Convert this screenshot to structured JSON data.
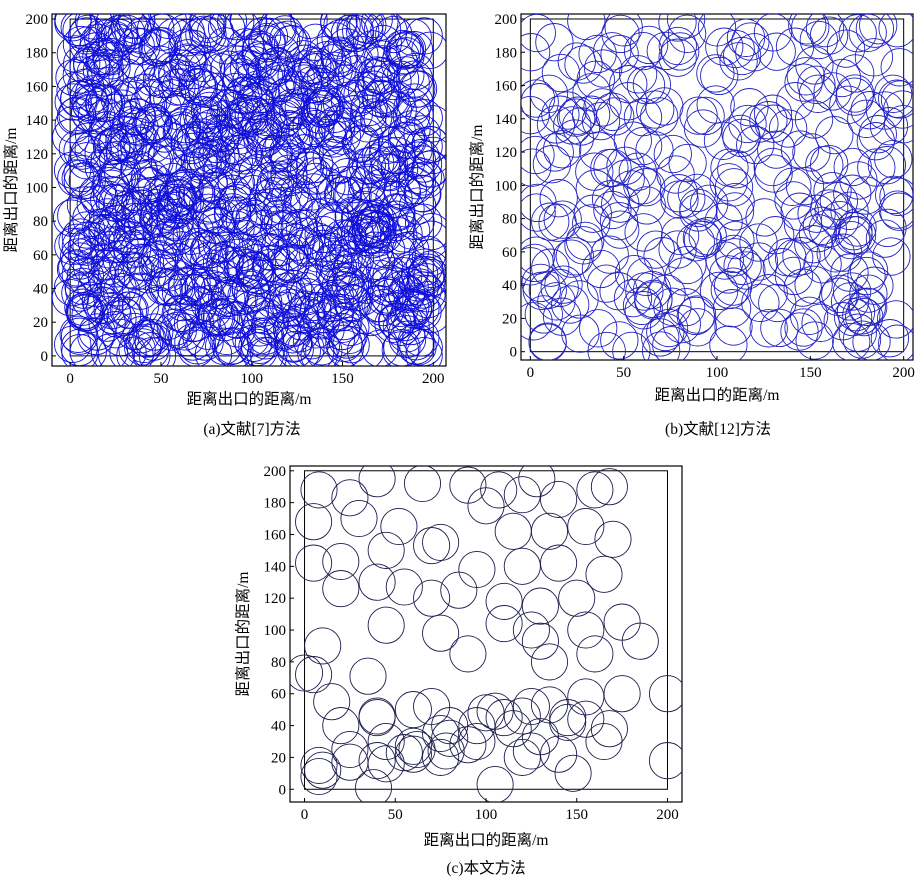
{
  "chart_data": [
    {
      "type": "scatter",
      "caption": "(a)文献[7]方法",
      "xlabel": "距离出口的距离/m",
      "ylabel": "距离出口的距离/m",
      "xlim": [
        -10,
        207
      ],
      "ylim": [
        -6,
        203
      ],
      "xticks": [
        0,
        50,
        100,
        150,
        200
      ],
      "yticks": [
        0,
        20,
        40,
        60,
        80,
        100,
        120,
        140,
        160,
        180,
        200
      ],
      "region": [
        0,
        200
      ],
      "circle_radius": 10,
      "circle_color": "#1010d8",
      "point_count": 1100,
      "seed": 7,
      "series": [
        {
          "x": [
            5,
            40,
            80,
            120,
            160,
            195,
            20,
            60,
            100,
            140,
            180,
            5,
            195,
            50,
            150,
            100
          ],
          "y": [
            195,
            190,
            192,
            188,
            193,
            190,
            150,
            145,
            155,
            148,
            152,
            5,
            5,
            60,
            70,
            100
          ]
        }
      ]
    },
    {
      "type": "scatter",
      "caption": "(b)文献[12]方法",
      "xlabel": "距离出口的距离/m",
      "ylabel": "距离出口的距离/m",
      "xlim": [
        -5,
        205
      ],
      "ylim": [
        -5,
        203
      ],
      "xticks": [
        0,
        50,
        100,
        150,
        200
      ],
      "yticks": [
        0,
        20,
        40,
        60,
        80,
        100,
        120,
        140,
        160,
        180,
        200
      ],
      "region": [
        0,
        200
      ],
      "circle_radius": 10,
      "circle_color": "#2323c4",
      "point_count": 330,
      "seed": 12,
      "series": [
        {
          "x": [
            5,
            10,
            20,
            50,
            100,
            130,
            150,
            160,
            180,
            190,
            60,
            110,
            120,
            175
          ],
          "y": [
            150,
            155,
            145,
            195,
            195,
            192,
            195,
            190,
            140,
            145,
            100,
            90,
            180,
            70
          ]
        }
      ]
    },
    {
      "type": "scatter",
      "caption": "(c)本文方法",
      "xlabel": "距离出口的距离/m",
      "ylabel": "距离出口的距离/m",
      "xlim": [
        -8,
        208
      ],
      "ylim": [
        -8,
        203
      ],
      "xticks": [
        0,
        50,
        100,
        150,
        200
      ],
      "yticks": [
        0,
        20,
        40,
        60,
        80,
        100,
        120,
        140,
        160,
        180,
        200
      ],
      "region": [
        0,
        200
      ],
      "circle_radius": 10,
      "circle_color": "#1e1e4e",
      "series": [
        {
          "x": [
            8,
            25,
            40,
            65,
            90,
            107,
            120,
            128,
            140,
            160,
            168,
            5,
            30,
            52,
            75,
            100,
            115,
            135,
            155,
            170,
            5,
            20,
            45,
            70,
            95,
            120,
            140,
            165,
            20,
            40,
            55,
            70,
            85,
            110,
            130,
            150,
            175,
            10,
            45,
            75,
            125,
            130,
            155,
            185,
            5,
            35,
            70,
            90,
            110,
            135,
            160,
            15,
            40,
            60,
            80,
            100,
            120,
            135,
            155,
            175,
            25,
            45,
            60,
            75,
            95,
            115,
            130,
            145,
            168,
            0,
            10,
            40,
            60,
            80,
            90,
            105,
            125,
            145,
            165,
            200,
            8,
            25,
            45,
            62,
            78,
            95,
            110,
            125,
            140,
            155,
            200,
            8,
            20,
            40,
            55,
            75,
            105,
            120,
            148,
            38
          ],
          "y": [
            188,
            183,
            195,
            192,
            191,
            188,
            185,
            195,
            182,
            188,
            190,
            168,
            170,
            165,
            155,
            178,
            162,
            162,
            165,
            157,
            142,
            143,
            150,
            153,
            138,
            140,
            142,
            135,
            126,
            130,
            127,
            120,
            125,
            118,
            115,
            120,
            105,
            90,
            103,
            98,
            100,
            93,
            100,
            93,
            72,
            71,
            52,
            85,
            104,
            80,
            85,
            55,
            46,
            50,
            40,
            48,
            46,
            53,
            58,
            60,
            25,
            30,
            27,
            35,
            40,
            38,
            33,
            42,
            38,
            73,
            12,
            45,
            22,
            32,
            28,
            49,
            52,
            45,
            30,
            60,
            8,
            17,
            16,
            25,
            24,
            30,
            45,
            24,
            22,
            44,
            18,
            15,
            40,
            18,
            23,
            20,
            3,
            20,
            10,
            1
          ]
        }
      ]
    }
  ]
}
